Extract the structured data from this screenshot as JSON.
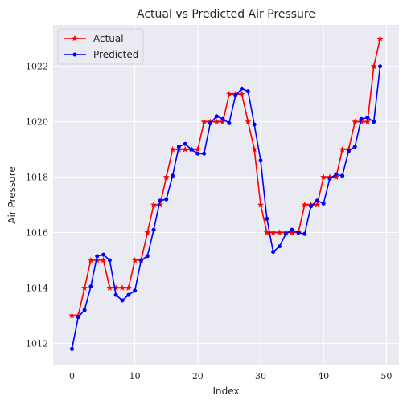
{
  "chart_data": {
    "type": "line",
    "title": "Actual vs Predicted Air Pressure",
    "xlabel": "Index",
    "ylabel": "Air Pressure",
    "xlim": [
      -3,
      52
    ],
    "ylim": [
      1011.2,
      1023.5
    ],
    "xticks": [
      0,
      10,
      20,
      30,
      40,
      50
    ],
    "yticks": [
      1012,
      1014,
      1016,
      1018,
      1020,
      1022
    ],
    "grid": true,
    "legend_position": "top-left",
    "x": [
      0,
      1,
      2,
      3,
      4,
      5,
      6,
      7,
      8,
      9,
      10,
      11,
      12,
      13,
      14,
      15,
      16,
      17,
      18,
      19,
      20,
      21,
      22,
      23,
      24,
      25,
      26,
      27,
      28,
      29,
      30,
      31,
      32,
      33,
      34,
      35,
      36,
      37,
      38,
      39,
      40,
      41,
      42,
      43,
      44,
      45,
      46,
      47,
      48,
      49
    ],
    "series": [
      {
        "name": "Actual",
        "color": "#ff0000",
        "marker": "star",
        "values": [
          1013,
          1013,
          1014,
          1015,
          1015,
          1015,
          1014,
          1014,
          1014,
          1014,
          1015,
          1015,
          1016,
          1017,
          1017,
          1018,
          1019,
          1019,
          1019,
          1019,
          1019,
          1020,
          1020,
          1020,
          1020,
          1021,
          1021,
          1021,
          1020,
          1019,
          1017,
          1016,
          1016,
          1016,
          1016,
          1016,
          1016,
          1017,
          1017,
          1017,
          1018,
          1018,
          1018,
          1019,
          1019,
          1020,
          1020,
          1020,
          1022,
          1023
        ]
      },
      {
        "name": "Predicted",
        "color": "#0000ff",
        "marker": "circle",
        "values": [
          1011.8,
          1012.95,
          1013.2,
          1014.05,
          1015.15,
          1015.2,
          1015.0,
          1013.75,
          1013.55,
          1013.75,
          1013.9,
          1015.0,
          1015.15,
          1016.1,
          1017.15,
          1017.2,
          1018.05,
          1019.1,
          1019.2,
          1019.0,
          1018.85,
          1018.85,
          1019.95,
          1020.2,
          1020.1,
          1019.95,
          1020.95,
          1021.2,
          1021.1,
          1019.9,
          1018.6,
          1016.5,
          1015.3,
          1015.5,
          1015.95,
          1016.1,
          1016.0,
          1015.95,
          1016.95,
          1017.15,
          1017.05,
          1017.95,
          1018.1,
          1018.05,
          1018.95,
          1019.1,
          1020.1,
          1020.15,
          1020.0,
          1022.0
        ]
      }
    ]
  }
}
